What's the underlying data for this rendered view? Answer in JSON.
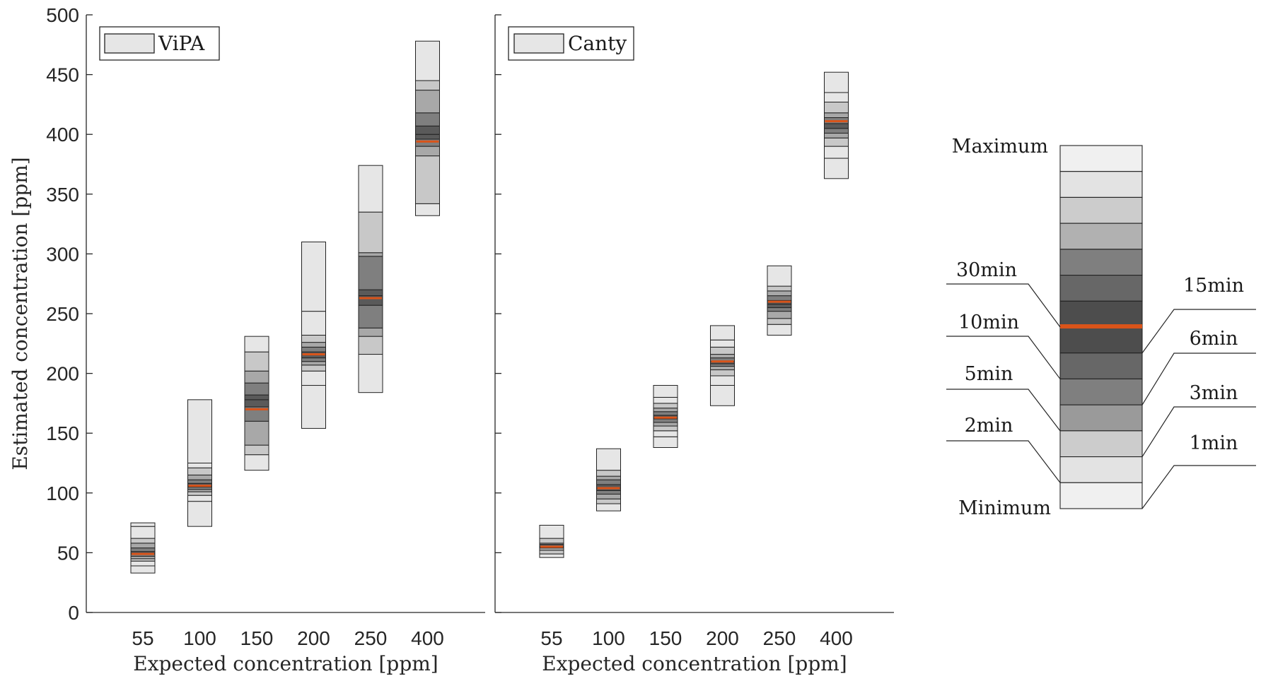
{
  "chart_data": [
    {
      "type": "box",
      "panel": "left",
      "legend": "ViPA",
      "legend_position": "top-left",
      "xlabel": "Expected concentration [ppm]",
      "ylabel": "Estimated concentration [ppm]",
      "ylim": [
        0,
        500
      ],
      "yticks": [
        "0",
        "50",
        "100",
        "150",
        "200",
        "250",
        "300",
        "350",
        "400",
        "450",
        "500"
      ],
      "categories": [
        "55",
        "100",
        "150",
        "200",
        "250",
        "400"
      ],
      "boxes": [
        {
          "category": "55",
          "levels": [
            33,
            39,
            43,
            45,
            47,
            49,
            51,
            54,
            58,
            62,
            72,
            75
          ],
          "median": 49
        },
        {
          "category": "100",
          "levels": [
            72,
            93,
            98,
            101,
            103,
            105,
            108,
            111,
            115,
            121,
            125,
            178
          ],
          "median": 106
        },
        {
          "category": "150",
          "levels": [
            119,
            132,
            140,
            160,
            172,
            178,
            182,
            192,
            202,
            218,
            231
          ],
          "median": 170
        },
        {
          "category": "200",
          "levels": [
            154,
            190,
            202,
            207,
            210,
            213,
            218,
            222,
            226,
            232,
            252,
            310
          ],
          "median": 216
        },
        {
          "category": "250",
          "levels": [
            184,
            216,
            231,
            238,
            257,
            265,
            270,
            298,
            301,
            335,
            374
          ],
          "median": 263
        },
        {
          "category": "400",
          "levels": [
            332,
            342,
            382,
            390,
            396,
            400,
            407,
            418,
            437,
            445,
            478
          ],
          "median": 394
        }
      ]
    },
    {
      "type": "box",
      "panel": "middle",
      "legend": "Canty",
      "legend_position": "top-left",
      "xlabel": "Expected concentration [ppm]",
      "ylim": [
        0,
        500
      ],
      "categories": [
        "55",
        "100",
        "150",
        "200",
        "250",
        "400"
      ],
      "boxes": [
        {
          "category": "55",
          "levels": [
            46,
            49,
            52,
            54,
            55,
            57,
            58,
            62,
            73
          ],
          "median": 55
        },
        {
          "category": "100",
          "levels": [
            85,
            91,
            95,
            99,
            102,
            104,
            107,
            111,
            114,
            119,
            137
          ],
          "median": 104
        },
        {
          "category": "150",
          "levels": [
            138,
            147,
            152,
            156,
            159,
            162,
            165,
            168,
            171,
            175,
            180,
            190
          ],
          "median": 163
        },
        {
          "category": "200",
          "levels": [
            173,
            190,
            198,
            203,
            206,
            208,
            210,
            213,
            216,
            222,
            228,
            240
          ],
          "median": 210
        },
        {
          "category": "250",
          "levels": [
            232,
            241,
            246,
            252,
            255,
            258,
            261,
            265,
            269,
            273,
            290
          ],
          "median": 260
        },
        {
          "category": "400",
          "levels": [
            363,
            380,
            390,
            397,
            401,
            405,
            409,
            414,
            418,
            427,
            435,
            452
          ],
          "median": 411
        }
      ]
    }
  ],
  "key": {
    "top_label": "Maximum",
    "bottom_label": "Minimum",
    "left_labels": [
      {
        "text": "30min",
        "segment_boundary": 7
      },
      {
        "text": "10min",
        "segment_boundary": 5
      },
      {
        "text": "5min",
        "segment_boundary": 3
      },
      {
        "text": "2min",
        "segment_boundary": 1
      }
    ],
    "right_labels": [
      {
        "text": "15min",
        "segment_boundary": 6
      },
      {
        "text": "6min",
        "segment_boundary": 4
      },
      {
        "text": "3min",
        "segment_boundary": 2
      },
      {
        "text": "1min",
        "segment_boundary": 1
      }
    ],
    "segment_colors": [
      "#f0f0f0",
      "#e3e3e3",
      "#cccccc",
      "#b1b1b1",
      "#7f7f7f",
      "#676767",
      "#4d4d4d",
      "#4d4d4d",
      "#676767",
      "#7f7f7f",
      "#9a9a9a",
      "#cccccc",
      "#e3e3e3",
      "#f0f0f0"
    ]
  },
  "colors": {
    "median": "#d9541a",
    "axis": "#262626",
    "outline": "#222222",
    "shades": [
      "#e6e6e6",
      "#c8c8c8",
      "#a8a8a8",
      "#7f7f7f",
      "#5a5a5a"
    ]
  }
}
